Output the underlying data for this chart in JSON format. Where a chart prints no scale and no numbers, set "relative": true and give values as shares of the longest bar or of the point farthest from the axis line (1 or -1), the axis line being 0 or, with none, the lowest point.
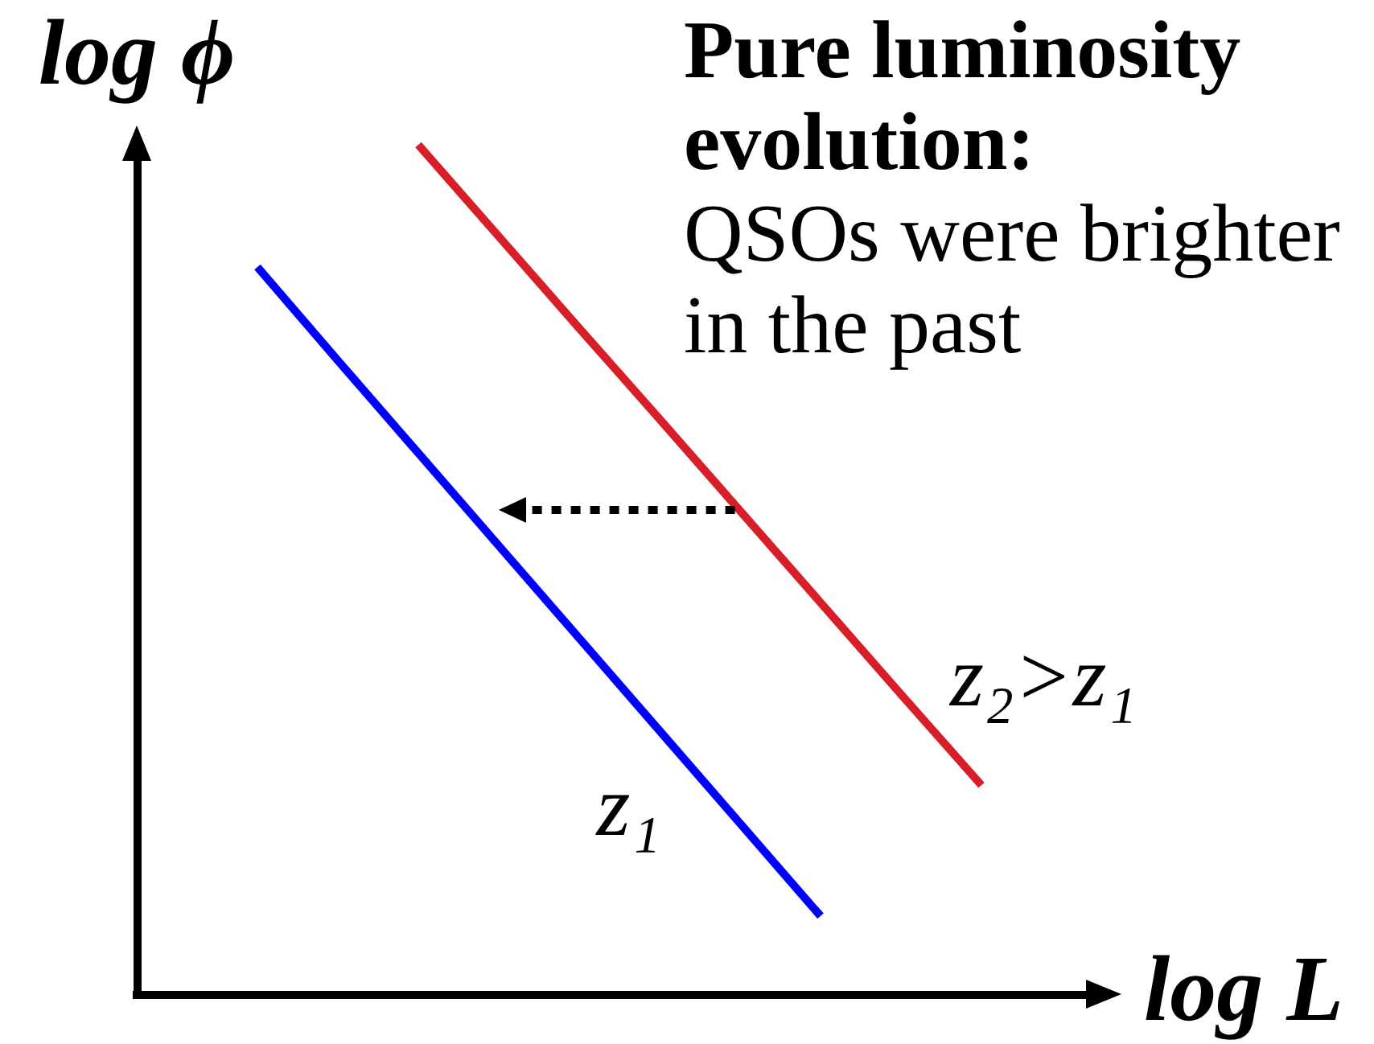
{
  "chart_data": {
    "type": "line",
    "relative": true,
    "title": "Pure luminosity evolution:",
    "subtitle": "QSOs were brighter in the past",
    "xlabel": "log L",
    "ylabel": "log ϕ",
    "marker": "none",
    "line_style": "solid",
    "categories": [
      null,
      null,
      null,
      null,
      null,
      null,
      null,
      null,
      null,
      null,
      null,
      null
    ],
    "series": [
      {
        "name": "z₁",
        "color": "#0000ff",
        "values": [
          null,
          0.856,
          0.746,
          0.637,
          0.528,
          0.419,
          0.31,
          0.201,
          0.092,
          null,
          null,
          null
        ]
      },
      {
        "name": "z₂>z₁",
        "color": "#d81e28",
        "values": [
          null,
          null,
          null,
          1,
          0.892,
          0.784,
          0.677,
          0.569,
          0.461,
          0.353,
          0.246,
          null
        ]
      }
    ]
  }
}
